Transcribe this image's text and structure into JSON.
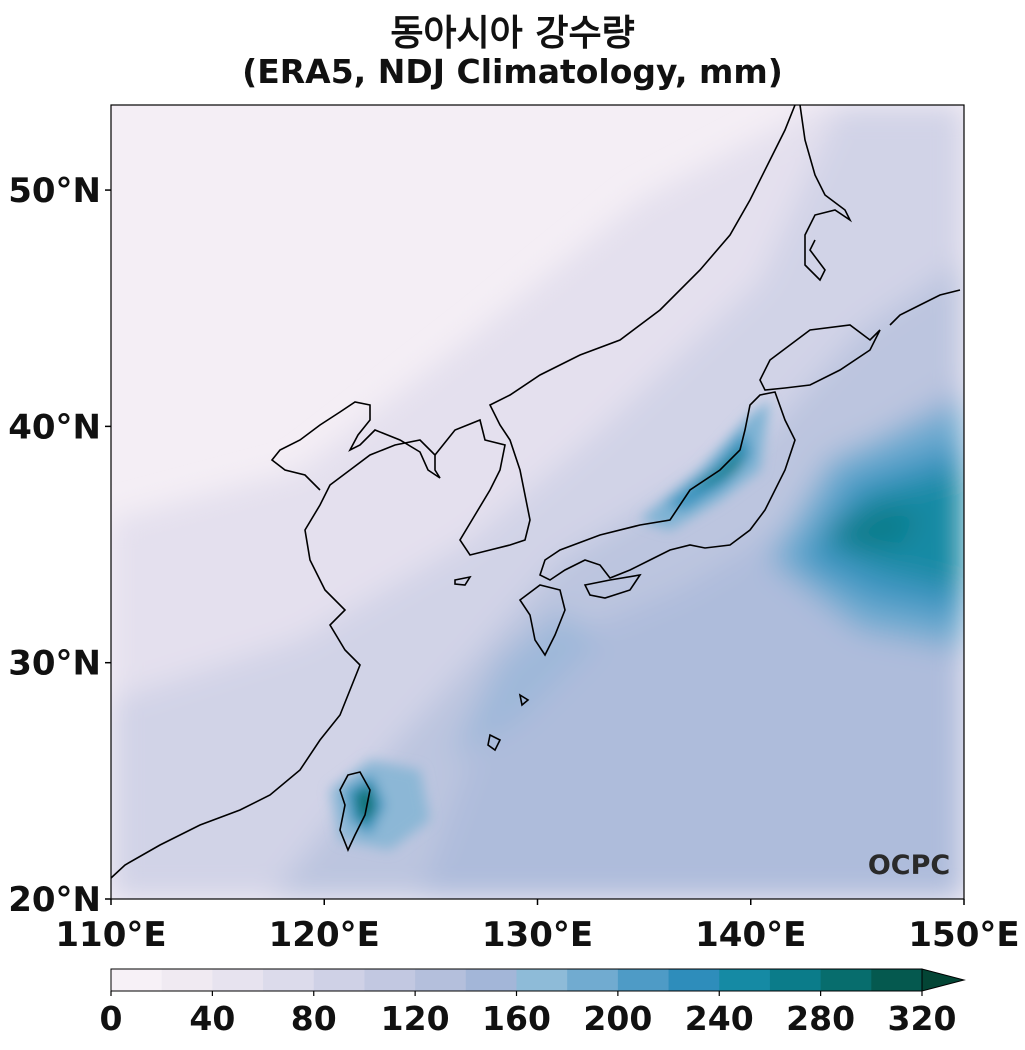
{
  "title": {
    "line1": "동아시아 강수량",
    "line2": "(ERA5, NDJ Climatology, mm)"
  },
  "map": {
    "lon_range": [
      110,
      150
    ],
    "lat_range": [
      20,
      53.6
    ],
    "lon_ticks": [
      "110°E",
      "120°E",
      "130°E",
      "140°E",
      "150°E"
    ],
    "lat_ticks": [
      "20°N",
      "30°N",
      "40°N",
      "50°N"
    ],
    "regions": [
      "Korea",
      "Japan",
      "Taiwan",
      "East China",
      "Sakhalin"
    ],
    "field": "precipitation",
    "max_areas": [
      "Japan Sea coast of Honshu",
      "Taiwan",
      "Northwest Pacific south-east of Japan"
    ]
  },
  "colorbar": {
    "ticks": [
      "0",
      "40",
      "80",
      "120",
      "160",
      "200",
      "240",
      "280",
      "320"
    ],
    "levels": [
      0,
      20,
      40,
      60,
      80,
      100,
      120,
      140,
      160,
      180,
      200,
      220,
      240,
      260,
      280,
      300,
      320
    ],
    "extend": "max",
    "colors": [
      "#f7f1f7",
      "#f0eaf2",
      "#e7e3ef",
      "#dcdbeb",
      "#cfd1e6",
      "#c2c8e1",
      "#b4bfdc",
      "#a3b6d8",
      "#8ebbd8",
      "#71abd0",
      "#4e9bc6",
      "#2e8dbb",
      "#158aa4",
      "#0b7c8a",
      "#076d6d",
      "#05594f"
    ],
    "extend_color": "#034535"
  },
  "logo": {
    "text": "OCPC"
  }
}
